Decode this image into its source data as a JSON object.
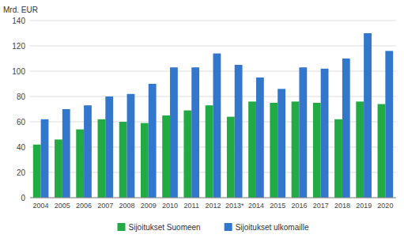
{
  "chart_data": {
    "type": "bar",
    "y_label": "Mrd. EUR",
    "categories": [
      "2004",
      "2005",
      "2006",
      "2007",
      "2008",
      "2009",
      "2010",
      "2011",
      "2012",
      "2013*",
      "2014",
      "2015",
      "2016",
      "2017",
      "2018",
      "2019",
      "2020"
    ],
    "series": [
      {
        "name": "Sijoitukset Suomeen",
        "color": "#22aa44",
        "values": [
          42,
          46,
          54,
          62,
          60,
          59,
          65,
          69,
          73,
          64,
          76,
          75,
          76,
          75,
          62,
          76,
          74
        ]
      },
      {
        "name": "Sijoitukset ulkomaille",
        "color": "#3377cc",
        "values": [
          62,
          70,
          73,
          80,
          82,
          90,
          103,
          103,
          114,
          105,
          95,
          86,
          103,
          102,
          110,
          130,
          116
        ]
      }
    ],
    "ylim": [
      0,
      140
    ],
    "yticks": [
      0,
      20,
      40,
      60,
      80,
      100,
      120,
      140
    ],
    "grid": true,
    "legend": "bottom"
  }
}
